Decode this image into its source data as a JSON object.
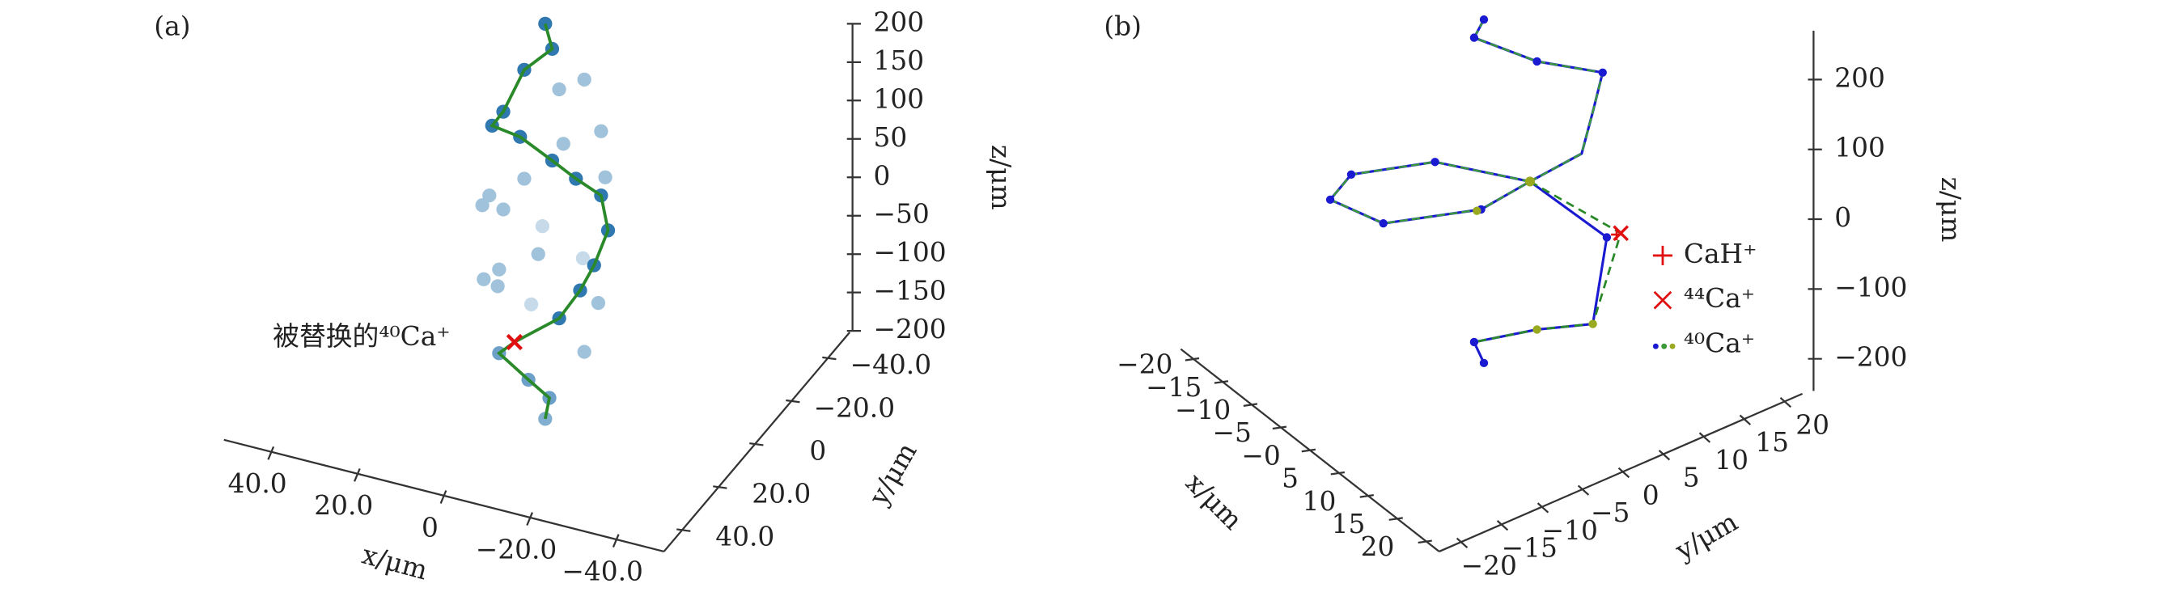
{
  "chart_data": [
    {
      "type": "scatter3d",
      "panel_label": "(a)",
      "annotation": "被替换的⁴⁰Ca⁺",
      "xlabel": "x/μm",
      "ylabel": "y/μm",
      "zlabel": "z/μm",
      "xlim": [
        51,
        -51
      ],
      "ylim": [
        -52,
        50
      ],
      "zlim": [
        -200,
        200
      ],
      "xticks": [
        {
          "value": 40,
          "label": "40.0"
        },
        {
          "value": 20,
          "label": "20.0"
        },
        0,
        {
          "value": -20,
          "label": "−20.0"
        },
        {
          "value": -40,
          "label": "−40.0"
        }
      ],
      "yticks": [
        {
          "value": -40,
          "label": "−40.0"
        },
        {
          "value": -20,
          "label": "−20.0"
        },
        0,
        {
          "value": 20,
          "label": "20.0"
        },
        {
          "value": 40,
          "label": "40.0"
        }
      ],
      "zticks": [
        200,
        150,
        100,
        50,
        0,
        {
          "value": -50,
          "label": "−50"
        },
        {
          "value": -100,
          "label": "−100"
        },
        {
          "value": -150,
          "label": "−150"
        },
        {
          "value": -200,
          "label": "−200"
        }
      ]
    },
    {
      "type": "scatter3d",
      "panel_label": "(b)",
      "xlabel": "x/μm",
      "ylabel": "y/μm",
      "zlabel": "z/μm",
      "legend": [
        "CaH⁺",
        "⁴⁴Ca⁺",
        "⁴⁰Ca⁺"
      ],
      "xlim": [
        -22.2,
        22.2
      ],
      "ylim": [
        -22.7,
        22.2
      ],
      "zlim": [
        -246,
        270
      ],
      "xticks": [
        {
          "value": -20,
          "label": "−20"
        },
        {
          "value": -15,
          "label": "−15"
        },
        {
          "value": -10,
          "label": "−10"
        },
        {
          "value": -5,
          "label": "−5"
        },
        {
          "value": 0,
          "label": "−0"
        },
        5,
        10,
        15,
        20
      ],
      "yticks": [
        {
          "value": -20,
          "label": "−20"
        },
        {
          "value": -15,
          "label": "−15"
        },
        {
          "value": -10,
          "label": "−10"
        },
        {
          "value": -5,
          "label": "−5"
        },
        0,
        5,
        10,
        15,
        20
      ],
      "zticks": [
        200,
        100,
        0,
        {
          "value": -100,
          "label": "−100"
        },
        {
          "value": -200,
          "label": "−200"
        }
      ]
    }
  ]
}
